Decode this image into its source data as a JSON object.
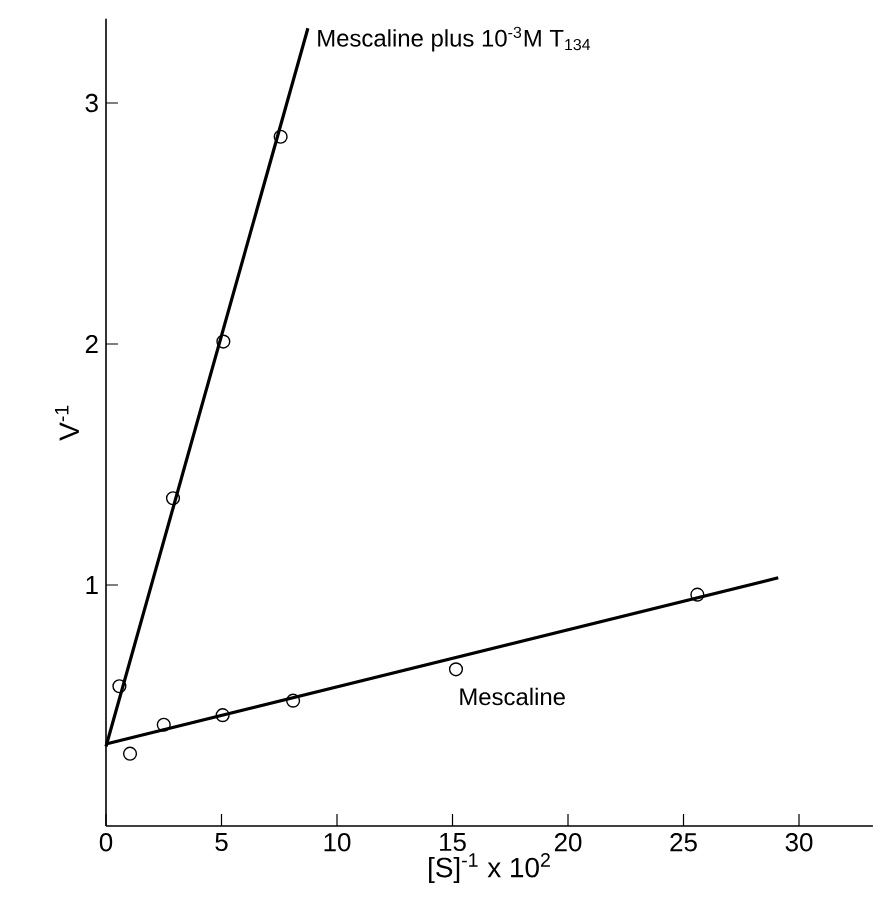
{
  "chart_data": {
    "type": "scatter",
    "xlabel": "[S]$^{-1}$ x 10$^{2}$",
    "ylabel": "V$^{-1}$",
    "xlim": [
      0,
      33.2
    ],
    "ylim": [
      0,
      3.35
    ],
    "xticks": [
      0,
      5,
      10,
      15,
      20,
      25,
      30
    ],
    "yticks": [
      1,
      2,
      3
    ],
    "grid": false,
    "series": [
      {
        "color": "#000000",
        "marker": "circle",
        "x": [
          0.58,
          2.9,
          5.08,
          7.56
        ],
        "values": [
          0.58,
          1.36,
          2.01,
          2.86
        ]
      },
      {
        "name": "Mescaline plus 10$^{-3}$M T$_{134}$",
        "type": "line",
        "color": "#000000",
        "x": [
          0,
          8.74
        ],
        "values": [
          0.33,
          3.31
        ]
      },
      {
        "name": "Mescaline",
        "color": "#000000",
        "marker": "circle",
        "x": [
          1.04,
          2.5,
          5.05,
          8.1,
          15.15,
          25.6
        ],
        "values": [
          0.3,
          0.42,
          0.46,
          0.52,
          0.65,
          0.96
        ]
      },
      {
        "type": "line",
        "color": "#000000",
        "x": [
          0,
          29.1
        ],
        "values": [
          0.34,
          1.03
        ]
      }
    ]
  }
}
